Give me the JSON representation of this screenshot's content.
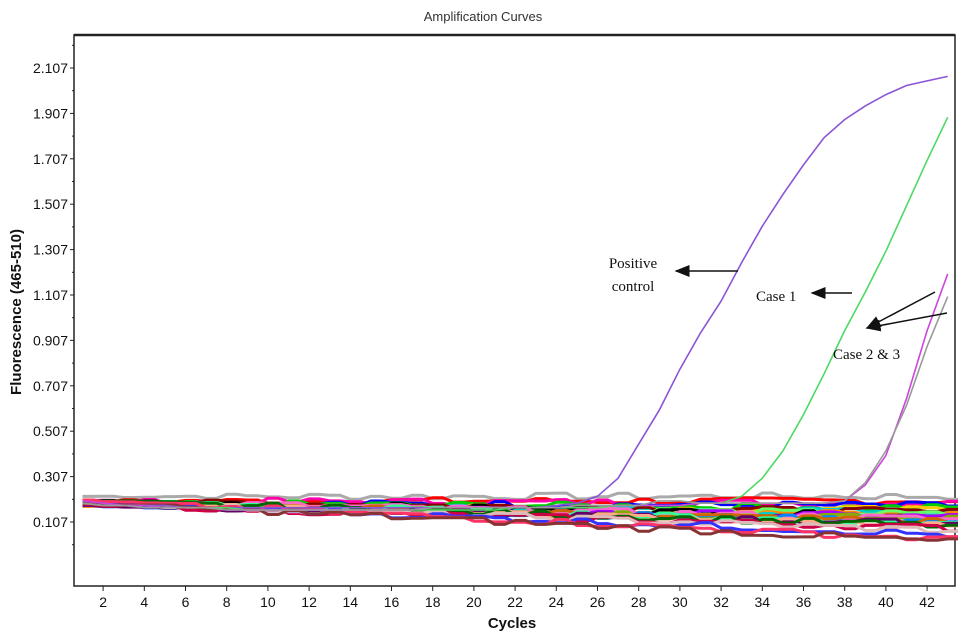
{
  "chart_data": {
    "type": "line",
    "title": "Amplification Curves",
    "xlabel": "Cycles",
    "ylabel": "Fluorescence (465-510)",
    "xlim": [
      0.6,
      43.5
    ],
    "ylim": [
      -0.18,
      2.33
    ],
    "x_ticks": [
      2,
      4,
      6,
      8,
      10,
      12,
      14,
      16,
      18,
      20,
      22,
      24,
      26,
      28,
      30,
      32,
      34,
      36,
      38,
      40,
      42
    ],
    "y_ticks": [
      "0.107",
      "0.307",
      "0.507",
      "0.707",
      "0.907",
      "1.107",
      "1.307",
      "1.507",
      "1.707",
      "1.907",
      "2.107"
    ],
    "x": [
      1,
      2,
      3,
      4,
      5,
      6,
      7,
      8,
      9,
      10,
      11,
      12,
      13,
      14,
      15,
      16,
      17,
      18,
      19,
      20,
      21,
      22,
      23,
      24,
      25,
      26,
      27,
      28,
      29,
      30,
      31,
      32,
      33,
      34,
      35,
      36,
      37,
      38,
      39,
      40,
      41,
      42,
      43
    ],
    "series": [
      {
        "name": "Positive control",
        "color": "#8a55d6",
        "values": [
          0.2,
          0.19,
          0.18,
          0.18,
          0.18,
          0.17,
          0.17,
          0.17,
          0.17,
          0.17,
          0.17,
          0.17,
          0.17,
          0.17,
          0.17,
          0.17,
          0.17,
          0.17,
          0.17,
          0.17,
          0.17,
          0.17,
          0.17,
          0.18,
          0.19,
          0.22,
          0.3,
          0.45,
          0.6,
          0.78,
          0.94,
          1.08,
          1.25,
          1.41,
          1.55,
          1.68,
          1.8,
          1.88,
          1.94,
          1.99,
          2.03,
          2.05,
          2.07
        ]
      },
      {
        "name": "Case 1",
        "color": "#4cd964",
        "values": [
          0.19,
          0.18,
          0.18,
          0.18,
          0.17,
          0.17,
          0.17,
          0.17,
          0.16,
          0.16,
          0.16,
          0.16,
          0.16,
          0.16,
          0.16,
          0.16,
          0.16,
          0.16,
          0.16,
          0.16,
          0.16,
          0.17,
          0.17,
          0.17,
          0.17,
          0.17,
          0.18,
          0.18,
          0.18,
          0.18,
          0.19,
          0.19,
          0.22,
          0.3,
          0.42,
          0.58,
          0.76,
          0.95,
          1.12,
          1.3,
          1.5,
          1.7,
          1.89
        ]
      },
      {
        "name": "Case 2",
        "color": "#cc44dd",
        "values": [
          0.2,
          0.19,
          0.18,
          0.18,
          0.17,
          0.17,
          0.17,
          0.16,
          0.16,
          0.16,
          0.16,
          0.16,
          0.16,
          0.16,
          0.16,
          0.16,
          0.16,
          0.17,
          0.17,
          0.17,
          0.17,
          0.17,
          0.17,
          0.17,
          0.18,
          0.18,
          0.18,
          0.18,
          0.18,
          0.18,
          0.19,
          0.19,
          0.19,
          0.19,
          0.19,
          0.19,
          0.19,
          0.2,
          0.27,
          0.4,
          0.65,
          0.95,
          1.2
        ]
      },
      {
        "name": "Case 3",
        "color": "#999999",
        "values": [
          0.19,
          0.18,
          0.18,
          0.17,
          0.17,
          0.17,
          0.17,
          0.16,
          0.16,
          0.16,
          0.16,
          0.16,
          0.16,
          0.16,
          0.16,
          0.16,
          0.16,
          0.17,
          0.17,
          0.17,
          0.17,
          0.17,
          0.17,
          0.17,
          0.18,
          0.18,
          0.18,
          0.18,
          0.2,
          0.2,
          0.19,
          0.19,
          0.19,
          0.19,
          0.19,
          0.19,
          0.19,
          0.2,
          0.28,
          0.42,
          0.62,
          0.88,
          1.1
        ]
      }
    ],
    "background_series": [
      {
        "start": 0.22,
        "end": 0.22,
        "color": "#aaaaaa"
      },
      {
        "start": 0.2,
        "end": 0.2,
        "color": "#ff0000"
      },
      {
        "start": 0.2,
        "end": 0.19,
        "color": "#ff00aa"
      },
      {
        "start": 0.19,
        "end": 0.18,
        "color": "#0000ff"
      },
      {
        "start": 0.19,
        "end": 0.17,
        "color": "#00cc00"
      },
      {
        "start": 0.18,
        "end": 0.16,
        "color": "#ffcc00"
      },
      {
        "start": 0.18,
        "end": 0.15,
        "color": "#00cccc"
      },
      {
        "start": 0.2,
        "end": 0.15,
        "color": "#880000"
      },
      {
        "start": 0.18,
        "end": 0.14,
        "color": "#ff8800"
      },
      {
        "start": 0.19,
        "end": 0.14,
        "color": "#66ff66"
      },
      {
        "start": 0.2,
        "end": 0.13,
        "color": "#000000"
      },
      {
        "start": 0.18,
        "end": 0.13,
        "color": "#aa00ff"
      },
      {
        "start": 0.19,
        "end": 0.12,
        "color": "#88aa00"
      },
      {
        "start": 0.2,
        "end": 0.12,
        "color": "#ff66cc"
      },
      {
        "start": 0.18,
        "end": 0.11,
        "color": "#0088ff"
      },
      {
        "start": 0.19,
        "end": 0.11,
        "color": "#cc6600"
      },
      {
        "start": 0.2,
        "end": 0.1,
        "color": "#33ff99"
      },
      {
        "start": 0.18,
        "end": 0.1,
        "color": "#660066"
      },
      {
        "start": 0.19,
        "end": 0.09,
        "color": "#ffaa88"
      },
      {
        "start": 0.2,
        "end": 0.09,
        "color": "#006600"
      },
      {
        "start": 0.18,
        "end": 0.08,
        "color": "#cc0044"
      },
      {
        "start": 0.19,
        "end": 0.07,
        "color": "#ddbbbb"
      },
      {
        "start": 0.19,
        "end": 0.05,
        "color": "#3333ff"
      },
      {
        "start": 0.2,
        "end": 0.03,
        "color": "#ff3366"
      },
      {
        "start": 0.19,
        "end": 0.02,
        "color": "#883333"
      }
    ],
    "grid": false,
    "legend": "none",
    "annotations": [
      {
        "text_lines": [
          "Positive",
          "control"
        ],
        "target": "Positive control"
      },
      {
        "text_lines": [
          "Case 1"
        ],
        "target": "Case 1"
      },
      {
        "text_lines": [
          "Case 2 & 3"
        ],
        "target": "Case 2, Case 3"
      }
    ]
  }
}
